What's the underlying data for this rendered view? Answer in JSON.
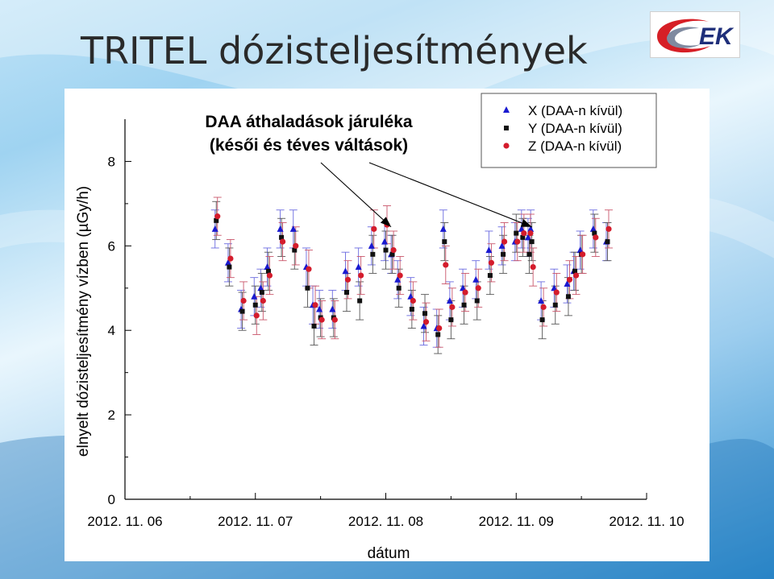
{
  "slide": {
    "title": "TRITEL dózisteljesítmények"
  },
  "logo": {
    "text": "EK",
    "colors": {
      "red": "#d61f26",
      "blue": "#1f2f7a",
      "gray": "#7f8aa0"
    }
  },
  "chart_data": {
    "type": "scatter",
    "ylabel": "elnyelt dózisteljesítmény vízben (µGy/h)",
    "xlabel": "dátum",
    "ylim": [
      0,
      9
    ],
    "xlim": [
      0,
      4
    ],
    "yticks": [
      0,
      2,
      4,
      6,
      8
    ],
    "xticks": [
      0,
      1,
      2,
      3,
      4
    ],
    "xticklabels": [
      "2012. 11. 06",
      "2012. 11. 07",
      "2012. 11. 08",
      "2012. 11. 09",
      "2012. 11. 10"
    ],
    "annotation": {
      "line1": "DAA áthaladások járuléka",
      "line2": "(késői és téves váltások)",
      "arrow_targets": [
        {
          "x": 2.04,
          "y": 6.45
        },
        {
          "x": 3.12,
          "y": 6.45
        }
      ]
    },
    "legend_placement": "top-right",
    "grid": false,
    "error_bar": 0.45,
    "x": [
      0.7,
      0.8,
      0.9,
      1.0,
      1.05,
      1.1,
      1.2,
      1.3,
      1.4,
      1.45,
      1.5,
      1.6,
      1.7,
      1.8,
      1.9,
      2.0,
      2.05,
      2.1,
      2.2,
      2.3,
      2.4,
      2.45,
      2.5,
      2.6,
      2.7,
      2.8,
      2.9,
      3.0,
      3.05,
      3.1,
      3.12,
      3.2,
      3.3,
      3.4,
      3.45,
      3.5,
      3.6,
      3.7
    ],
    "series": [
      {
        "name": "X (DAA-n kívül)",
        "marker": "triangle",
        "color": "#1a1ad0",
        "values": [
          6.4,
          5.6,
          4.5,
          4.8,
          5.0,
          5.5,
          6.4,
          6.4,
          5.5,
          4.6,
          4.5,
          4.5,
          5.4,
          5.5,
          6.0,
          6.1,
          5.8,
          5.2,
          4.8,
          4.1,
          4.05,
          6.4,
          4.7,
          5.0,
          5.2,
          5.9,
          6.0,
          6.1,
          6.4,
          6.2,
          6.4,
          4.7,
          5.0,
          5.1,
          5.4,
          5.9,
          6.4,
          6.1
        ]
      },
      {
        "name": "Y (DAA-n kívül)",
        "marker": "square",
        "color": "#111111",
        "values": [
          6.6,
          5.5,
          4.45,
          4.6,
          4.9,
          5.4,
          6.2,
          5.9,
          5.0,
          4.1,
          4.3,
          4.3,
          4.9,
          4.7,
          5.8,
          5.9,
          5.8,
          5.0,
          4.5,
          4.4,
          3.9,
          6.1,
          4.25,
          4.6,
          4.7,
          5.3,
          5.8,
          6.3,
          6.2,
          5.8,
          6.1,
          4.25,
          4.6,
          4.8,
          5.4,
          5.8,
          6.3,
          6.1
        ]
      },
      {
        "name": "Z (DAA-n kívül)",
        "marker": "circle",
        "color": "#d41c2c",
        "values": [
          6.7,
          5.7,
          4.7,
          4.35,
          4.7,
          5.3,
          6.1,
          6.0,
          5.45,
          4.6,
          4.25,
          4.25,
          5.2,
          5.3,
          6.4,
          6.5,
          5.9,
          5.3,
          4.7,
          4.2,
          4.05,
          5.55,
          4.55,
          4.9,
          5.0,
          5.6,
          6.1,
          6.1,
          6.3,
          6.3,
          5.5,
          4.55,
          4.9,
          5.2,
          5.3,
          5.8,
          6.2,
          6.4
        ]
      }
    ]
  }
}
